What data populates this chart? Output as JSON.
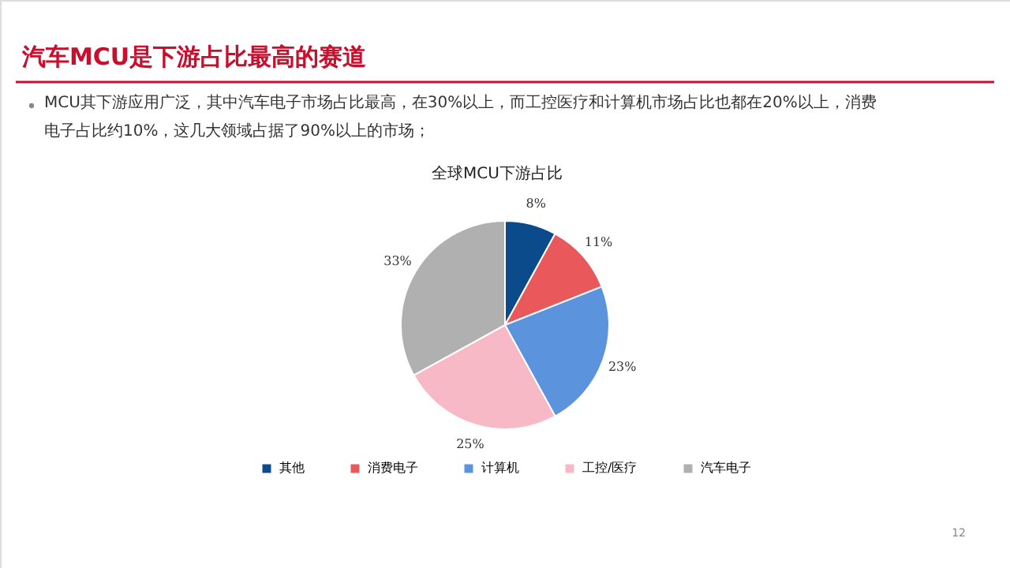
{
  "chart_data": {
    "type": "pie",
    "title": "汽车MCU是下游占比最高的赛道",
    "subtitle": "MCU其下游应用广泛，其中汽车电子市场占比最高，在30%以上，而工控医疗和计算机市场占比也都在20%以上，消费电子占比约10%，这几大领域占据了90%以上的市场；",
    "annotations": [
      "全球MCU下游占比",
      "12"
    ],
    "categories": [
      "其他",
      "消费电子",
      "计算机",
      "工控/医疗",
      "汽车电子"
    ],
    "values": [
      8,
      11,
      23,
      25,
      33
    ],
    "colors": [
      "#0b4a8b",
      "#e9585b",
      "#5b93dc",
      "#f8b9c6",
      "#b0b0b0"
    ],
    "value_labels": [
      "8%",
      "11%",
      "23%",
      "25%",
      "33%"
    ],
    "legend": "bottom"
  }
}
